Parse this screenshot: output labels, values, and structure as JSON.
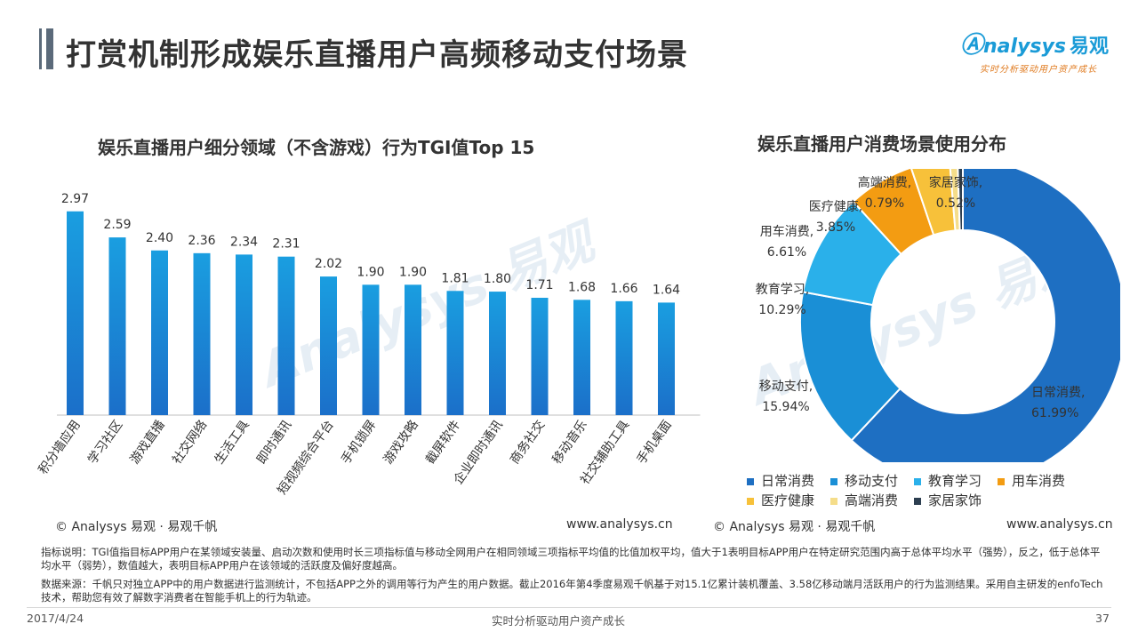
{
  "header": {
    "title": "打赏机制形成娱乐直播用户高频移动支付场景"
  },
  "logo": {
    "brand_en": "nalysys",
    "brand_cn": "易观",
    "tagline": "实时分析驱动用户资产成长"
  },
  "watermark": {
    "text": "Analysys 易观"
  },
  "colors": {
    "bar": "#1a8fd6",
    "donut": [
      "#1e6fc2",
      "#1a8fd6",
      "#2ab0ea",
      "#f39c12",
      "#f7c13a",
      "#f5dd8a",
      "#2c3e50"
    ]
  },
  "chart_data": [
    {
      "type": "bar",
      "title": "娱乐直播用户细分领域（不含游戏）行为TGI值Top 15",
      "categories": [
        "积分墙应用",
        "学习社区",
        "游戏直播",
        "社交网络",
        "生活工具",
        "即时通讯",
        "短视频综合平台",
        "手机锁屏",
        "游戏攻略",
        "截屏软件",
        "企业即时通讯",
        "商务社交",
        "移动音乐",
        "社交辅助工具",
        "手机桌面"
      ],
      "values": [
        2.97,
        2.59,
        2.4,
        2.36,
        2.34,
        2.31,
        2.02,
        1.9,
        1.9,
        1.81,
        1.8,
        1.71,
        1.68,
        1.66,
        1.64
      ],
      "value_labels": [
        "2.97",
        "2.59",
        "2.40",
        "2.36",
        "2.34",
        "2.31",
        "2.02",
        "1.90",
        "1.90",
        "1.81",
        "1.80",
        "1.71",
        "1.68",
        "1.66",
        "1.64"
      ],
      "ylim": [
        0,
        3.2
      ],
      "grid": false
    },
    {
      "type": "pie",
      "title": "娱乐直播用户消费场景使用分布",
      "labels": [
        "日常消费",
        "移动支付",
        "教育学习",
        "用车消费",
        "医疗健康",
        "高端消费",
        "家居家饰"
      ],
      "values": [
        61.99,
        15.94,
        10.29,
        6.61,
        3.85,
        0.79,
        0.52
      ],
      "value_labels": [
        "61.99%",
        "15.94%",
        "10.29%",
        "6.61%",
        "3.85%",
        "0.79%",
        "0.52%"
      ],
      "donut": true,
      "legend": "bottom"
    }
  ],
  "copyright": {
    "left_chart": "© Analysys 易观 · 易观千帆",
    "right_chart": "© Analysys 易观 · 易观千帆",
    "url_left": "www.analysys.cn",
    "url_right": "www.analysys.cn"
  },
  "notes": {
    "indicator": "指标说明：TGI值指目标APP用户在某领域安装量、启动次数和使用时长三项指标值与移动全网用户在相同领域三项指标平均值的比值加权平均，值大于1表明目标APP用户在特定研究范围内高于总体平均水平（强势），反之，低于总体平均水平（弱势），数值越大，表明目标APP用户在该领域的活跃度及偏好度越高。",
    "source": "数据来源：千帆只对独立APP中的用户数据进行监测统计，不包括APP之外的调用等行为产生的用户数据。截止2016年第4季度易观千帆基于对15.1亿累计装机覆盖、3.58亿移动端月活跃用户的行为监测结果。采用自主研发的enfoTech技术，帮助您有效了解数字消费者在智能手机上的行为轨迹。"
  },
  "footer": {
    "date": "2017/4/24",
    "slogan": "实时分析驱动用户资产成长",
    "page": "37"
  }
}
